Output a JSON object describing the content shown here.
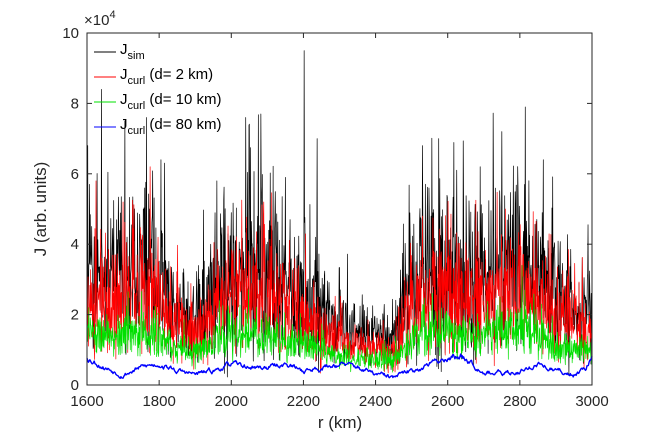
{
  "chart_data": {
    "type": "line",
    "title": "",
    "xlabel": "r (km)",
    "ylabel": "J (arb. units)",
    "exponent_base": "×10",
    "exponent_power": "4",
    "xlim": [
      1600,
      3000
    ],
    "ylim": [
      0,
      10
    ],
    "y_scale_factor": 10000,
    "xticks": [
      1600,
      1800,
      2000,
      2200,
      2400,
      2600,
      2800,
      3000
    ],
    "yticks": [
      0,
      2,
      4,
      6,
      8,
      10
    ],
    "legend_position": "top-left",
    "grid": false,
    "envelope_x": [
      1600,
      1650,
      1700,
      1750,
      1800,
      1850,
      1900,
      1950,
      2000,
      2050,
      2100,
      2150,
      2200,
      2250,
      2300,
      2350,
      2400,
      2450,
      2500,
      2550,
      2600,
      2650,
      2700,
      2750,
      2800,
      2850,
      2900,
      2950,
      3000
    ],
    "series": [
      {
        "name": "J_sim",
        "label_main": "J",
        "label_sub": "sim",
        "label_suffix": "",
        "color": "#000000",
        "seed": 11,
        "mean": [
          3.0,
          2.8,
          3.0,
          3.2,
          2.8,
          2.0,
          1.8,
          2.5,
          3.0,
          3.3,
          3.0,
          2.6,
          2.5,
          2.0,
          1.6,
          1.4,
          1.3,
          1.3,
          2.8,
          3.2,
          3.2,
          3.0,
          3.0,
          3.2,
          3.5,
          3.0,
          2.4,
          2.2,
          2.0
        ],
        "amp": [
          2.0,
          1.8,
          2.0,
          2.2,
          2.0,
          1.4,
          1.2,
          1.8,
          2.2,
          2.4,
          2.2,
          1.8,
          1.8,
          1.4,
          1.0,
          0.8,
          0.7,
          0.8,
          2.0,
          2.4,
          2.4,
          2.2,
          2.2,
          2.4,
          2.4,
          2.2,
          1.8,
          1.6,
          1.4
        ],
        "spikes": [
          [
            1602,
            6.8
          ],
          [
            1640,
            8.4
          ],
          [
            1705,
            7.5
          ],
          [
            1765,
            7.6
          ],
          [
            1805,
            6.4
          ],
          [
            1960,
            5.8
          ],
          [
            2040,
            7.6
          ],
          [
            2082,
            7.7
          ],
          [
            2150,
            5.9
          ],
          [
            2202,
            9.5
          ],
          [
            2238,
            7.0
          ],
          [
            2530,
            6.8
          ],
          [
            2575,
            7.0
          ],
          [
            2625,
            6.1
          ],
          [
            2690,
            6.2
          ],
          [
            2750,
            7.2
          ],
          [
            2815,
            7.9
          ],
          [
            2865,
            6.4
          ]
        ]
      },
      {
        "name": "J_curl (d= 2 km)",
        "label_main": "J",
        "label_sub": "curl",
        "label_suffix": " (d= 2 km)",
        "color": "#ff0000",
        "seed": 23,
        "mean": [
          2.4,
          2.2,
          2.4,
          2.6,
          2.3,
          1.6,
          1.4,
          2.0,
          2.5,
          2.7,
          2.5,
          2.1,
          2.0,
          1.6,
          1.3,
          1.1,
          1.0,
          1.0,
          2.3,
          2.6,
          2.6,
          2.4,
          2.4,
          2.6,
          2.8,
          2.4,
          1.9,
          1.7,
          1.6
        ],
        "amp": [
          1.4,
          1.3,
          1.4,
          1.6,
          1.4,
          1.0,
          0.8,
          1.2,
          1.5,
          1.6,
          1.5,
          1.2,
          1.2,
          1.0,
          0.7,
          0.6,
          0.5,
          0.6,
          1.4,
          1.6,
          1.6,
          1.5,
          1.5,
          1.6,
          1.6,
          1.5,
          1.2,
          1.1,
          1.0
        ],
        "spikes": [
          [
            1625,
            5.8
          ],
          [
            1700,
            5.2
          ],
          [
            1775,
            6.2
          ],
          [
            2090,
            5.2
          ],
          [
            2530,
            4.8
          ],
          [
            2760,
            5.0
          ]
        ]
      },
      {
        "name": "J_curl (d= 10 km)",
        "label_main": "J",
        "label_sub": "curl",
        "label_suffix": " (d= 10 km)",
        "color": "#00e000",
        "seed": 37,
        "mean": [
          1.5,
          1.3,
          1.4,
          1.5,
          1.3,
          1.0,
          0.9,
          1.2,
          1.4,
          1.5,
          1.4,
          1.2,
          1.2,
          1.0,
          0.8,
          0.7,
          0.7,
          0.7,
          1.3,
          1.5,
          1.5,
          1.4,
          1.4,
          1.5,
          1.6,
          1.4,
          1.1,
          1.0,
          1.0
        ],
        "amp": [
          0.6,
          0.5,
          0.6,
          0.6,
          0.5,
          0.4,
          0.4,
          0.5,
          0.6,
          0.6,
          0.6,
          0.5,
          0.5,
          0.4,
          0.3,
          0.3,
          0.3,
          0.3,
          0.6,
          0.6,
          0.6,
          0.6,
          0.6,
          0.6,
          0.7,
          0.6,
          0.5,
          0.4,
          0.4
        ],
        "spikes": [
          [
            1605,
            2.2
          ],
          [
            2745,
            2.5
          ],
          [
            2860,
            2.3
          ]
        ]
      },
      {
        "name": "J_curl (d= 80 km)",
        "label_main": "J",
        "label_sub": "curl",
        "label_suffix": " (d= 80 km)",
        "color": "#0000ff",
        "seed": 53,
        "mean": [
          0.8,
          0.5,
          0.3,
          0.5,
          0.6,
          0.4,
          0.3,
          0.4,
          0.6,
          0.5,
          0.5,
          0.6,
          0.4,
          0.5,
          0.6,
          0.5,
          0.3,
          0.2,
          0.4,
          0.6,
          0.8,
          0.8,
          0.4,
          0.3,
          0.4,
          0.6,
          0.4,
          0.3,
          0.7
        ],
        "amp": [
          0.15,
          0.1,
          0.1,
          0.1,
          0.1,
          0.1,
          0.1,
          0.1,
          0.1,
          0.1,
          0.1,
          0.1,
          0.1,
          0.1,
          0.1,
          0.1,
          0.1,
          0.1,
          0.1,
          0.1,
          0.15,
          0.15,
          0.1,
          0.1,
          0.1,
          0.1,
          0.1,
          0.1,
          0.15
        ],
        "spikes": []
      }
    ]
  }
}
